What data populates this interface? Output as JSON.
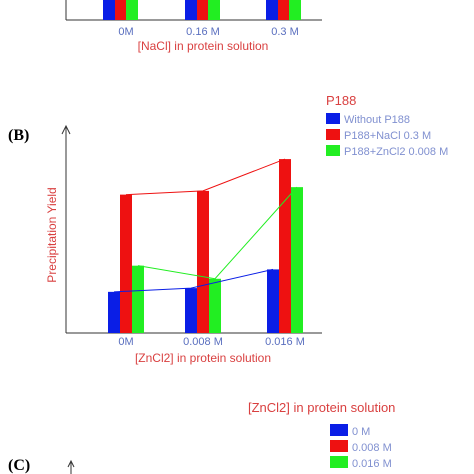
{
  "colors": {
    "axis": "#333333",
    "tick_text": "#5a6fbf",
    "title_text": "#d94040",
    "legend_text": "#8090d0",
    "blue": "#0a1ee6",
    "red": "#ee1111",
    "green": "#22ee22"
  },
  "panelA": {
    "categories": [
      "0M",
      "0.16 M",
      "0.3 M"
    ],
    "xlabel": "[NaCl] in protein solution"
  },
  "panelB": {
    "label": "(B)",
    "chart_data": {
      "type": "bar",
      "categories": [
        "0M",
        "0.008 M",
        "0.016 M"
      ],
      "xlabel": "[ZnCl2] in protein solution",
      "ylabel": "Precipitation Yield",
      "ylim": [
        0,
        100
      ],
      "legend_title": "P188",
      "legend_position": "top-right",
      "grid": false,
      "series": [
        {
          "name": "Without P188",
          "color": "#0a1ee6",
          "values": [
            22,
            24,
            34
          ]
        },
        {
          "name": "P188+NaCl 0.3 M",
          "color": "#ee1111",
          "values": [
            74,
            76,
            93
          ]
        },
        {
          "name": "P188+ZnCl2 0.008 M",
          "color": "#22ee22",
          "values": [
            36,
            29,
            78
          ]
        }
      ]
    }
  },
  "panelC": {
    "label": "(C)",
    "legend_title": "[ZnCl2] in protein solution",
    "legend_items": [
      {
        "name": "0 M",
        "color": "#0a1ee6"
      },
      {
        "name": "0.008 M",
        "color": "#ee1111"
      },
      {
        "name": "0.016 M",
        "color": "#22ee22"
      }
    ]
  }
}
